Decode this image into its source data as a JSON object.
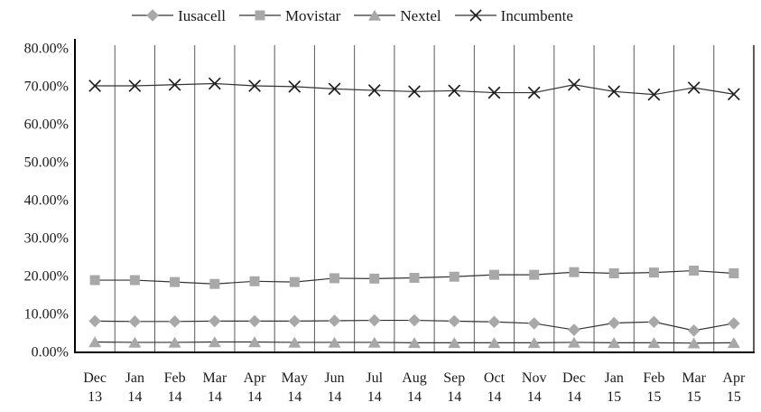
{
  "page": {
    "background": "#ffffff",
    "description_visible_text_only": "Line chart of mobile market shares by operator, Dec 13 to Apr 15"
  },
  "colors": {
    "marker_fill": "#a8a8a8",
    "series_line": "#333333",
    "x_marker": "#1f1f1f",
    "gridline": "#595959",
    "plot_right_border": "#262626",
    "axis": "#000000",
    "text": "#1a1a1a"
  },
  "legend": {
    "items": [
      {
        "label": "Iusacell",
        "marker": "diamond"
      },
      {
        "label": "Movistar",
        "marker": "square"
      },
      {
        "label": "Nextel",
        "marker": "triangle"
      },
      {
        "label": "Incumbente",
        "marker": "x"
      }
    ]
  },
  "chart_data": {
    "type": "line",
    "legend_position": "top",
    "grid": "vertical-only",
    "ylim": [
      0,
      80
    ],
    "y_ticks": [
      {
        "value": 0,
        "label": "0.00%"
      },
      {
        "value": 10,
        "label": "10.00%"
      },
      {
        "value": 20,
        "label": "20.00%"
      },
      {
        "value": 30,
        "label": "30.00%"
      },
      {
        "value": 40,
        "label": "40.00%"
      },
      {
        "value": 50,
        "label": "50.00%"
      },
      {
        "value": 60,
        "label": "60.00%"
      },
      {
        "value": 70,
        "label": "70.00%"
      },
      {
        "value": 80,
        "label": "80.00%"
      }
    ],
    "categories": [
      {
        "month": "Dec",
        "year": "13"
      },
      {
        "month": "Jan",
        "year": "14"
      },
      {
        "month": "Feb",
        "year": "14"
      },
      {
        "month": "Mar",
        "year": "14"
      },
      {
        "month": "Apr",
        "year": "14"
      },
      {
        "month": "May",
        "year": "14"
      },
      {
        "month": "Jun",
        "year": "14"
      },
      {
        "month": "Jul",
        "year": "14"
      },
      {
        "month": "Aug",
        "year": "14"
      },
      {
        "month": "Sep",
        "year": "14"
      },
      {
        "month": "Oct",
        "year": "14"
      },
      {
        "month": "Nov",
        "year": "14"
      },
      {
        "month": "Dec",
        "year": "14"
      },
      {
        "month": "Jan",
        "year": "15"
      },
      {
        "month": "Feb",
        "year": "15"
      },
      {
        "month": "Mar",
        "year": "15"
      },
      {
        "month": "Apr",
        "year": "15"
      }
    ],
    "series": [
      {
        "name": "Iusacell",
        "marker": "diamond",
        "values": [
          8.0,
          7.9,
          7.9,
          8.0,
          8.0,
          8.0,
          8.1,
          8.2,
          8.2,
          8.0,
          7.8,
          7.4,
          5.7,
          7.5,
          7.8,
          5.5,
          7.4
        ]
      },
      {
        "name": "Movistar",
        "marker": "square",
        "values": [
          18.8,
          18.8,
          18.3,
          17.8,
          18.5,
          18.3,
          19.3,
          19.2,
          19.4,
          19.7,
          20.2,
          20.2,
          20.9,
          20.6,
          20.8,
          21.3,
          20.6
        ]
      },
      {
        "name": "Nextel",
        "marker": "triangle",
        "values": [
          2.5,
          2.4,
          2.4,
          2.5,
          2.5,
          2.4,
          2.4,
          2.4,
          2.3,
          2.3,
          2.3,
          2.3,
          2.4,
          2.3,
          2.3,
          2.2,
          2.3
        ]
      },
      {
        "name": "Incumbente",
        "marker": "x",
        "values": [
          70.0,
          70.0,
          70.3,
          70.6,
          70.0,
          69.8,
          69.2,
          68.8,
          68.5,
          68.7,
          68.2,
          68.2,
          70.3,
          68.5,
          67.7,
          69.5,
          67.8
        ]
      }
    ]
  }
}
